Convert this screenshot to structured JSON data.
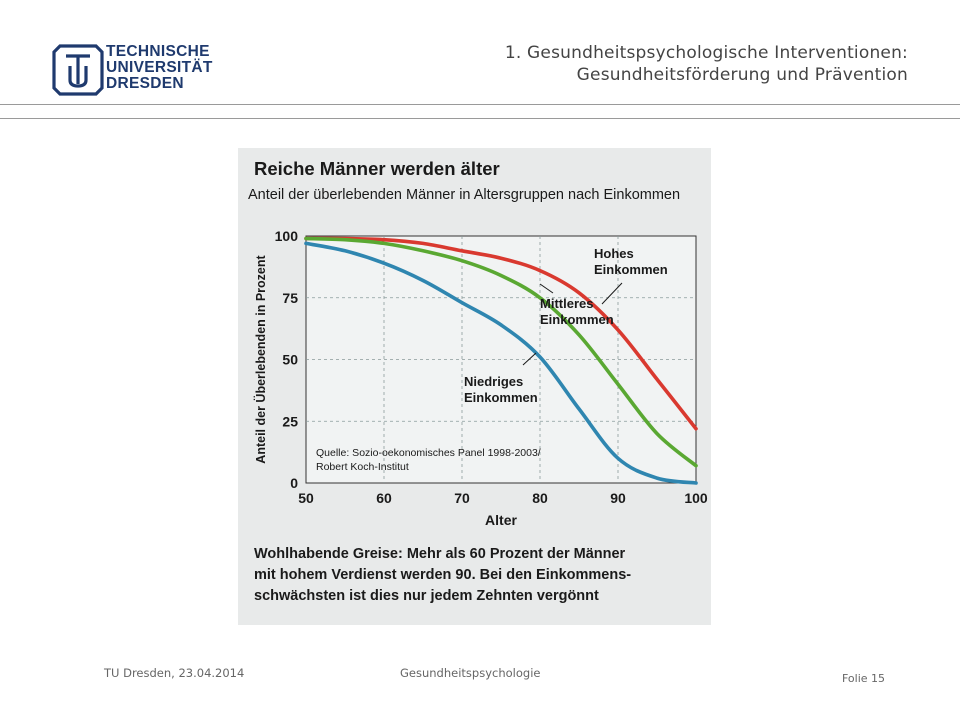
{
  "header": {
    "logo_lines": [
      "TECHNISCHE",
      "UNIVERSITÄT",
      "DRESDEN"
    ],
    "title_line1": "1. Gesundheitspsychologische Interventionen:",
    "title_line2": "Gesundheitsförderung und Prävention"
  },
  "footer": {
    "left": "TU Dresden, 23.04.2014",
    "center": "Gesundheitspsychologie",
    "right": "Folie 15"
  },
  "colors": {
    "brand": "#1f3a6e",
    "series_high": "#d9392f",
    "series_mid": "#5aa832",
    "series_low": "#2f86b0"
  },
  "chart_data": {
    "type": "line",
    "title": "Reiche Männer werden älter",
    "subtitle": "Anteil der überlebenden Männer in Altersgruppen nach Einkommen",
    "xlabel": "Alter",
    "ylabel": "Anteil der Überlebenden in Prozent",
    "xlim": [
      50,
      100
    ],
    "ylim": [
      0,
      100
    ],
    "xticks": [
      50,
      60,
      70,
      80,
      90,
      100
    ],
    "yticks": [
      0,
      25,
      50,
      75,
      100
    ],
    "grid": true,
    "x": [
      50,
      55,
      60,
      65,
      70,
      75,
      80,
      85,
      90,
      95,
      100
    ],
    "series": [
      {
        "name": "Hohes Einkommen",
        "label_lines": [
          "Hohes",
          "Einkommen"
        ],
        "color": "#d9392f",
        "values": [
          99,
          99,
          98.5,
          97,
          94,
          91,
          86,
          77,
          62,
          42,
          22
        ]
      },
      {
        "name": "Mittleres Einkommen",
        "label_lines": [
          "Mittleres",
          "Einkommen"
        ],
        "color": "#5aa832",
        "values": [
          99,
          98.5,
          97,
          94,
          90,
          84,
          75,
          60,
          40,
          20,
          7
        ]
      },
      {
        "name": "Niedriges Einkommen",
        "label_lines": [
          "Niedriges",
          "Einkommen"
        ],
        "color": "#2f86b0",
        "values": [
          97,
          94,
          89,
          82,
          73,
          64,
          51,
          30,
          10,
          2,
          0
        ]
      }
    ],
    "source_lines": [
      "Quelle: Sozio-oekonomisches Panel 1998-2003/",
      "Robert Koch-Institut"
    ],
    "caption_lines": [
      "Wohlhabende Greise: Mehr als 60 Prozent der Männer",
      "mit hohem Verdienst werden 90. Bei den Einkommens-",
      "schwächsten ist dies nur jedem Zehnten vergönnt"
    ]
  }
}
